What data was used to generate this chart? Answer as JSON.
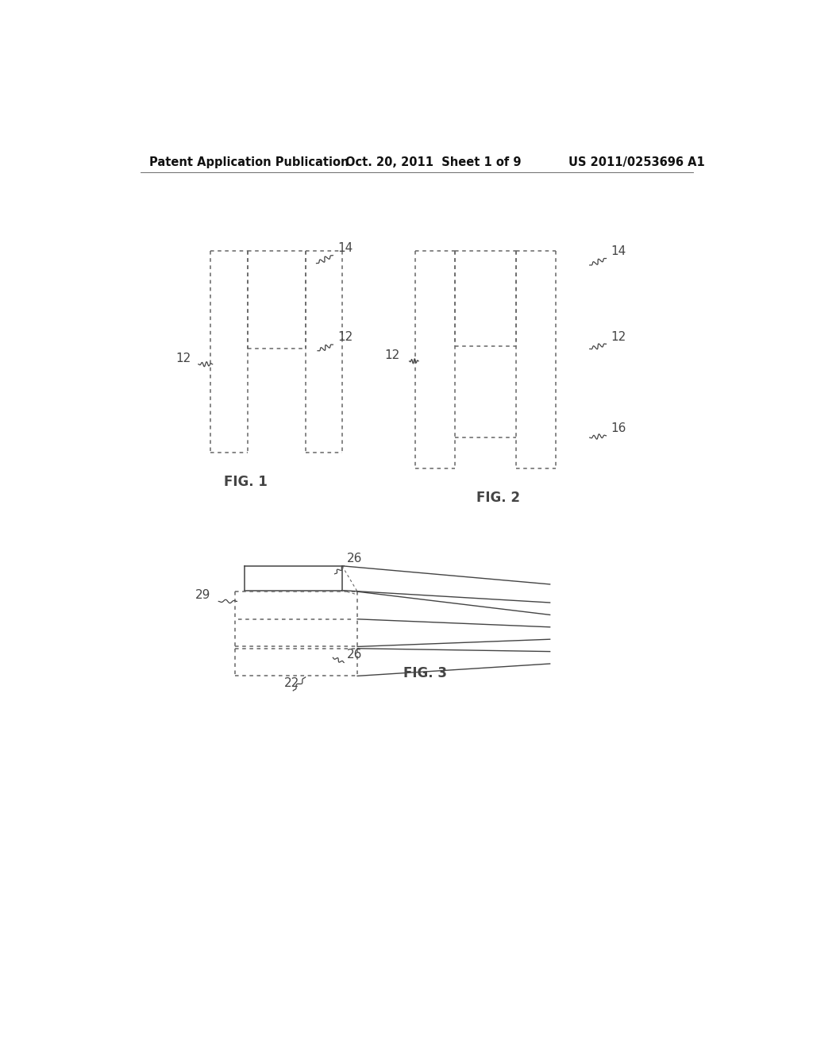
{
  "background_color": "#ffffff",
  "header_left": "Patent Application Publication",
  "header_center": "Oct. 20, 2011  Sheet 1 of 9",
  "header_right": "US 2011/0253696 A1",
  "fig1_label": "FIG. 1",
  "fig2_label": "FIG. 2",
  "fig3_label": "FIG. 3",
  "dot_color": "#666666",
  "line_color": "#444444",
  "label_fontsize": 11,
  "figlabel_fontsize": 12
}
